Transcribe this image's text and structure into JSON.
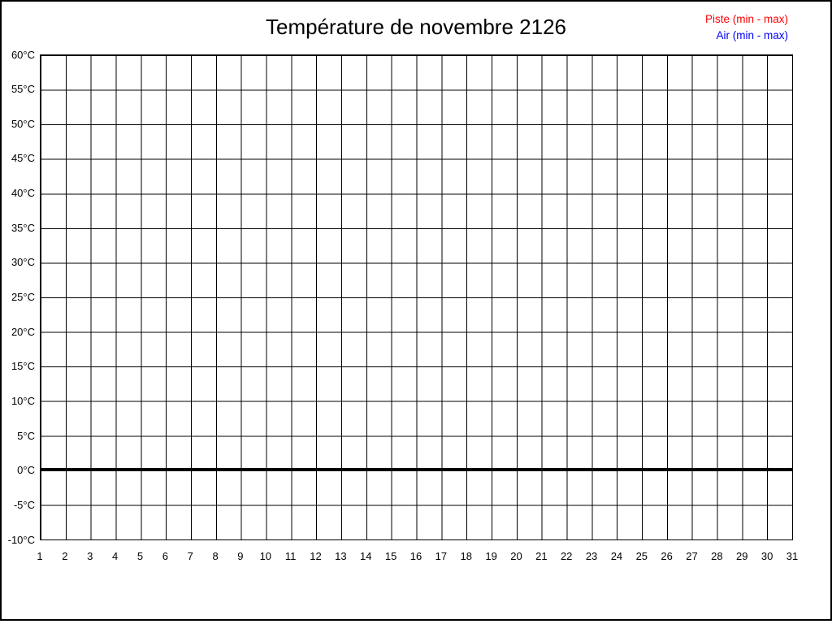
{
  "title": "Température de novembre 2126",
  "legend": {
    "piste_label": "Piste (min - max)",
    "air_label": "Air (min - max)",
    "piste_color": "#ff0000",
    "air_color": "#0000ff"
  },
  "axes": {
    "y_ticks": [
      "60°C",
      "55°C",
      "50°C",
      "45°C",
      "40°C",
      "35°C",
      "30°C",
      "25°C",
      "20°C",
      "15°C",
      "10°C",
      "5°C",
      "0°C",
      "-5°C",
      "-10°C"
    ],
    "x_ticks": [
      "1",
      "2",
      "3",
      "4",
      "5",
      "6",
      "7",
      "8",
      "9",
      "10",
      "11",
      "12",
      "13",
      "14",
      "15",
      "16",
      "17",
      "18",
      "19",
      "20",
      "21",
      "22",
      "23",
      "24",
      "25",
      "26",
      "27",
      "28",
      "29",
      "30",
      "31"
    ]
  },
  "chart_data": {
    "type": "line",
    "title": "Température de novembre 2126",
    "x": [
      1,
      2,
      3,
      4,
      5,
      6,
      7,
      8,
      9,
      10,
      11,
      12,
      13,
      14,
      15,
      16,
      17,
      18,
      19,
      20,
      21,
      22,
      23,
      24,
      25,
      26,
      27,
      28,
      29,
      30,
      31
    ],
    "xlabel": "",
    "ylabel": "",
    "ylim": [
      -10,
      60
    ],
    "ytick_step": 5,
    "grid": true,
    "legend_position": "top-right",
    "zero_line_emphasized": true,
    "series": [
      {
        "name": "Piste (min - max)",
        "color": "#ff0000",
        "values": []
      },
      {
        "name": "Air (min - max)",
        "color": "#0000ff",
        "values": []
      }
    ],
    "note": "Empty chart: no data points plotted for any day; only grid, axes and bold 0°C reference line are drawn."
  }
}
